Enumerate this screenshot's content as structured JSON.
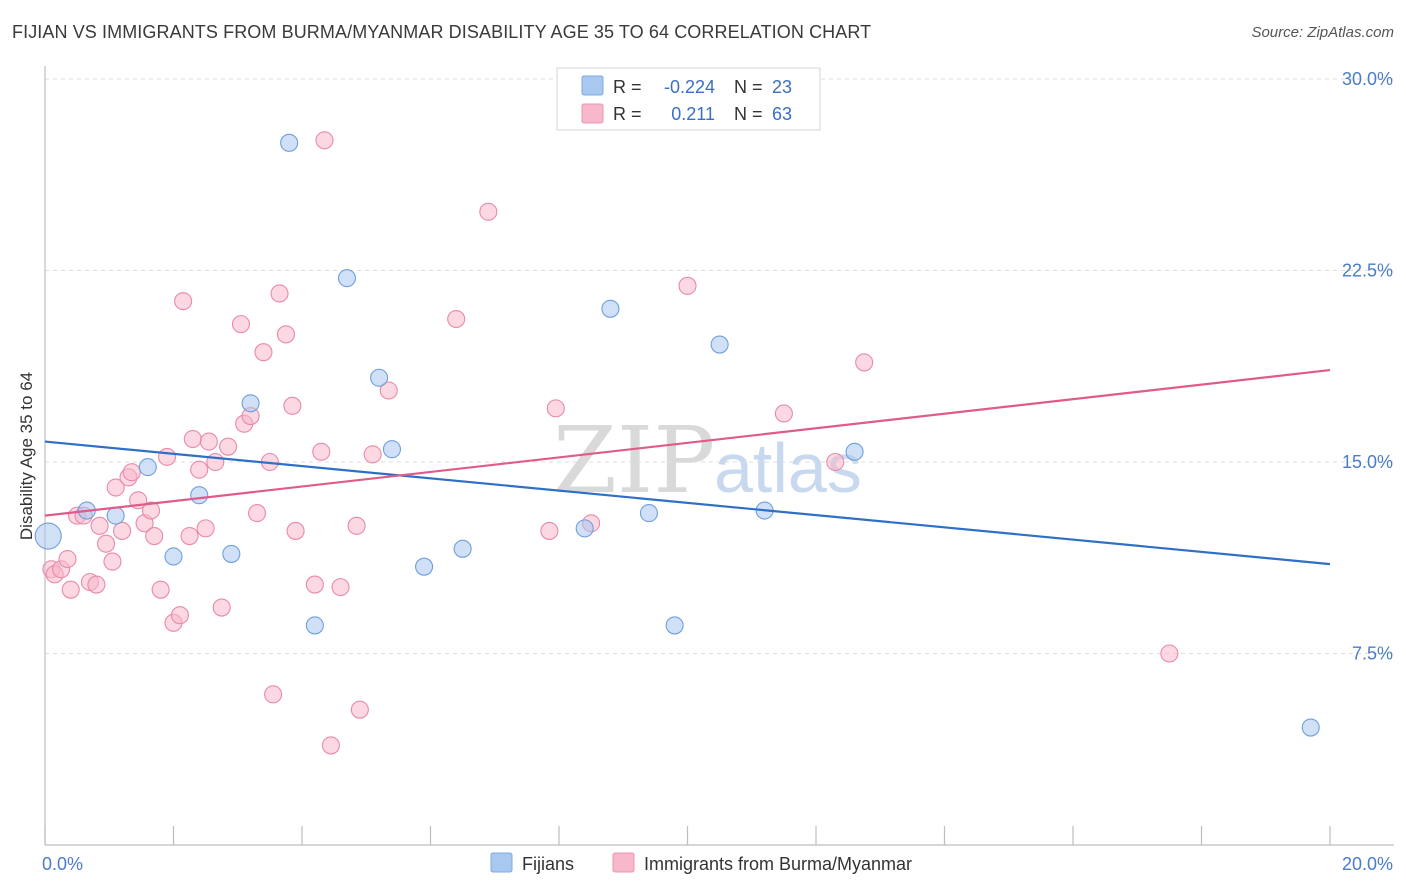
{
  "title": "FIJIAN VS IMMIGRANTS FROM BURMA/MYANMAR DISABILITY AGE 35 TO 64 CORRELATION CHART",
  "source": "Source: ZipAtlas.com",
  "watermark": {
    "zip": "ZIP",
    "atlas": "atlas"
  },
  "legend": {
    "r_label": "R =",
    "n_label": "N =",
    "rows": [
      {
        "r": "-0.224",
        "n": "23",
        "color": "#a9c8f0"
      },
      {
        "r": "0.211",
        "n": "63",
        "color": "#f7b8cb"
      }
    ]
  },
  "bottom_legend": [
    {
      "label": "Fijians",
      "color": "#a9c8f0"
    },
    {
      "label": "Immigrants from Burma/Myanmar",
      "color": "#f7b8cb"
    }
  ],
  "chart_data": {
    "type": "scatter",
    "title": "FIJIAN VS IMMIGRANTS FROM BURMA/MYANMAR DISABILITY AGE 35 TO 64 CORRELATION CHART",
    "xlabel": "",
    "ylabel": "Disability Age 35 to 64",
    "xlim": [
      0,
      20
    ],
    "ylim": [
      0,
      30
    ],
    "x_tick_labels": [
      "0.0%",
      "20.0%"
    ],
    "y_ticks": [
      7.5,
      15.0,
      22.5,
      30.0
    ],
    "y_tick_labels": [
      "7.5%",
      "15.0%",
      "22.5%",
      "30.0%"
    ],
    "series": [
      {
        "name": "Fijians",
        "color": "#a9c8f0",
        "stroke": "#6f9fdc",
        "trend_color": "#2f6fc6",
        "trend": {
          "x0": 0,
          "y0": 15.8,
          "x1": 20,
          "y1": 11.0
        },
        "points": [
          [
            0.05,
            12.1
          ],
          [
            1.1,
            12.9
          ],
          [
            1.6,
            14.8
          ],
          [
            2.0,
            11.3
          ],
          [
            2.4,
            13.7
          ],
          [
            2.9,
            11.4
          ],
          [
            3.2,
            17.3
          ],
          [
            3.8,
            27.5
          ],
          [
            4.2,
            8.6
          ],
          [
            4.7,
            22.2
          ],
          [
            5.2,
            18.3
          ],
          [
            5.4,
            15.5
          ],
          [
            5.9,
            10.9
          ],
          [
            6.5,
            11.6
          ],
          [
            8.4,
            12.4
          ],
          [
            8.8,
            21.0
          ],
          [
            9.4,
            13.0
          ],
          [
            9.8,
            8.6
          ],
          [
            10.5,
            19.6
          ],
          [
            11.2,
            13.1
          ],
          [
            12.6,
            15.4
          ],
          [
            19.7,
            4.6
          ],
          [
            0.65,
            13.1
          ]
        ]
      },
      {
        "name": "Immigrants from Burma/Myanmar",
        "color": "#f7b8cb",
        "stroke": "#e98aa8",
        "trend_color": "#e05a8a",
        "trend": {
          "x0": 0,
          "y0": 12.9,
          "x1": 20,
          "y1": 18.6
        },
        "points": [
          [
            0.1,
            10.8
          ],
          [
            0.15,
            10.6
          ],
          [
            0.25,
            10.8
          ],
          [
            0.35,
            11.2
          ],
          [
            0.4,
            10.0
          ],
          [
            0.5,
            12.9
          ],
          [
            0.6,
            12.9
          ],
          [
            0.7,
            10.3
          ],
          [
            0.8,
            10.2
          ],
          [
            0.85,
            12.5
          ],
          [
            0.95,
            11.8
          ],
          [
            1.05,
            11.1
          ],
          [
            1.1,
            14.0
          ],
          [
            1.2,
            12.3
          ],
          [
            1.3,
            14.4
          ],
          [
            1.35,
            14.6
          ],
          [
            1.45,
            13.5
          ],
          [
            1.55,
            12.6
          ],
          [
            1.65,
            13.1
          ],
          [
            1.7,
            12.1
          ],
          [
            1.8,
            10.0
          ],
          [
            1.9,
            15.2
          ],
          [
            2.0,
            8.7
          ],
          [
            2.1,
            9.0
          ],
          [
            2.15,
            21.3
          ],
          [
            2.25,
            12.1
          ],
          [
            2.3,
            15.9
          ],
          [
            2.4,
            14.7
          ],
          [
            2.5,
            12.4
          ],
          [
            2.55,
            15.8
          ],
          [
            2.65,
            15.0
          ],
          [
            2.75,
            9.3
          ],
          [
            2.85,
            15.6
          ],
          [
            3.05,
            20.4
          ],
          [
            3.1,
            16.5
          ],
          [
            3.2,
            16.8
          ],
          [
            3.3,
            13.0
          ],
          [
            3.4,
            19.3
          ],
          [
            3.5,
            15.0
          ],
          [
            3.55,
            5.9
          ],
          [
            3.65,
            21.6
          ],
          [
            3.75,
            20.0
          ],
          [
            3.85,
            17.2
          ],
          [
            3.9,
            12.3
          ],
          [
            4.2,
            10.2
          ],
          [
            4.3,
            15.4
          ],
          [
            4.35,
            27.6
          ],
          [
            4.45,
            3.9
          ],
          [
            4.6,
            10.1
          ],
          [
            4.85,
            12.5
          ],
          [
            4.9,
            5.3
          ],
          [
            5.1,
            15.3
          ],
          [
            5.35,
            17.8
          ],
          [
            6.4,
            20.6
          ],
          [
            6.9,
            24.8
          ],
          [
            7.85,
            12.3
          ],
          [
            7.95,
            17.1
          ],
          [
            8.5,
            12.6
          ],
          [
            10.0,
            21.9
          ],
          [
            11.5,
            16.9
          ],
          [
            12.3,
            15.0
          ],
          [
            12.75,
            18.9
          ],
          [
            17.5,
            7.5
          ]
        ]
      }
    ]
  }
}
